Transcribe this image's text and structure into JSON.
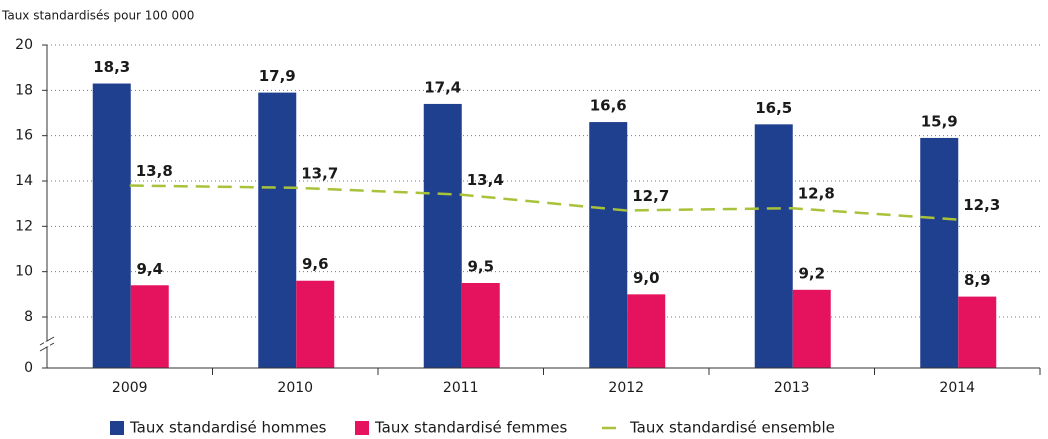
{
  "chart_data": {
    "type": "bar_line",
    "title": "Taux standardisés pour 100 000",
    "categories": [
      "2009",
      "2010",
      "2011",
      "2012",
      "2013",
      "2014"
    ],
    "series": [
      {
        "name": "Taux standardisé hommes",
        "type": "bar",
        "color": "#1f3f8f",
        "values": [
          18.3,
          17.9,
          17.4,
          16.6,
          16.5,
          15.9
        ],
        "value_labels": [
          "18,3",
          "17,9",
          "17,4",
          "16,6",
          "16,5",
          "15,9"
        ]
      },
      {
        "name": "Taux standardisé femmes",
        "type": "bar",
        "color": "#e5135e",
        "values": [
          9.4,
          9.6,
          9.5,
          9.0,
          9.2,
          8.9
        ],
        "value_labels": [
          "9,4",
          "9,6",
          "9,5",
          "9,0",
          "9,2",
          "8,9"
        ]
      },
      {
        "name": "Taux standardisé ensemble",
        "type": "line",
        "color": "#a8c23a",
        "dashed": true,
        "values": [
          13.8,
          13.7,
          13.4,
          12.7,
          12.8,
          12.3
        ],
        "value_labels": [
          "13,8",
          "13,7",
          "13,4",
          "12,7",
          "12,8",
          "12,3"
        ]
      }
    ],
    "ylim": [
      0,
      20
    ],
    "ybreak": [
      0,
      8
    ],
    "yticks": [
      0,
      8,
      10,
      12,
      14,
      16,
      18,
      20
    ],
    "grid": true,
    "legend": "bottom"
  }
}
